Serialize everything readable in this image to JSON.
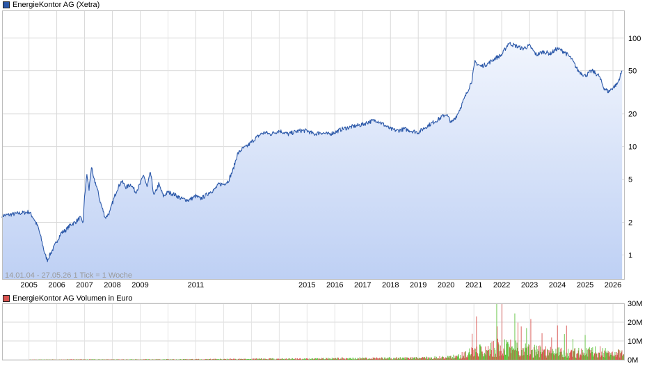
{
  "chart_data": [
    {
      "type": "line",
      "title": "EnergieKontor AG (Xetra)",
      "scale": "log",
      "ylim": [
        0.6,
        180
      ],
      "grid": true,
      "legend_position": "top-left",
      "y_ticks": [
        1,
        2,
        5,
        10,
        20,
        50,
        100
      ],
      "x_ticks": [
        "2005",
        "2006",
        "2007",
        "2008",
        "2009",
        "2011",
        "2015",
        "2016",
        "2017",
        "2018",
        "2019",
        "2020",
        "2021",
        "2022",
        "2023",
        "2024",
        "2025",
        "2026"
      ],
      "footer": "14.01.04 - 27.05.26    1 Tick = 1 Woche",
      "series": [
        {
          "name": "EnergieKontor AG (Xetra)",
          "color": "#2a57a8",
          "points": [
            [
              "2005-01-01",
              2.5
            ],
            [
              "2005-03-01",
              2.2
            ],
            [
              "2005-05-01",
              1.8
            ],
            [
              "2005-06-01",
              1.5
            ],
            [
              "2005-08-01",
              1.0
            ],
            [
              "2005-09-01",
              0.9
            ],
            [
              "2005-10-01",
              1.0
            ],
            [
              "2005-12-01",
              1.2
            ],
            [
              "2006-01-15",
              1.4
            ],
            [
              "2006-03-01",
              1.6
            ],
            [
              "2006-05-01",
              1.7
            ],
            [
              "2006-07-01",
              1.9
            ],
            [
              "2006-09-01",
              2.0
            ],
            [
              "2006-11-01",
              2.2
            ],
            [
              "2006-12-15",
              2.0
            ],
            [
              "2007-01-01",
              3.5
            ],
            [
              "2007-02-01",
              5.5
            ],
            [
              "2007-03-01",
              4.0
            ],
            [
              "2007-04-01",
              6.5
            ],
            [
              "2007-05-01",
              5.0
            ],
            [
              "2007-06-01",
              4.5
            ],
            [
              "2007-08-01",
              3.0
            ],
            [
              "2007-10-01",
              2.2
            ],
            [
              "2007-12-01",
              2.5
            ],
            [
              "2008-01-01",
              3.0
            ],
            [
              "2008-03-01",
              4.0
            ],
            [
              "2008-05-01",
              4.8
            ],
            [
              "2008-07-01",
              4.2
            ],
            [
              "2008-09-01",
              4.5
            ],
            [
              "2008-11-01",
              3.8
            ],
            [
              "2009-01-01",
              4.5
            ],
            [
              "2009-02-15",
              5.5
            ],
            [
              "2009-04-01",
              4.2
            ],
            [
              "2009-05-15",
              5.8
            ],
            [
              "2009-07-01",
              3.5
            ],
            [
              "2009-09-01",
              4.5
            ],
            [
              "2009-11-01",
              3.5
            ],
            [
              "2010-01-01",
              3.8
            ],
            [
              "2010-04-01",
              3.6
            ],
            [
              "2010-07-01",
              3.3
            ],
            [
              "2010-10-01",
              3.2
            ],
            [
              "2011-01-01",
              3.5
            ],
            [
              "2011-03-01",
              3.3
            ],
            [
              "2011-05-01",
              3.5
            ],
            [
              "2011-07-01",
              3.8
            ],
            [
              "2011-09-01",
              4.0
            ],
            [
              "2011-11-01",
              4.5
            ],
            [
              "2012-01-01",
              4.5
            ],
            [
              "2012-03-01",
              4.8
            ],
            [
              "2012-05-01",
              6.0
            ],
            [
              "2012-07-01",
              8.5
            ],
            [
              "2012-09-01",
              9.5
            ],
            [
              "2012-11-01",
              10.0
            ],
            [
              "2013-01-01",
              11.0
            ],
            [
              "2013-03-01",
              12.0
            ],
            [
              "2013-05-01",
              13.0
            ],
            [
              "2013-07-01",
              13.5
            ],
            [
              "2013-09-01",
              13.0
            ],
            [
              "2013-11-01",
              13.5
            ],
            [
              "2014-01-01",
              14.0
            ],
            [
              "2014-03-01",
              13.5
            ],
            [
              "2014-05-01",
              13.0
            ],
            [
              "2014-07-01",
              13.5
            ],
            [
              "2014-10-01",
              14.0
            ],
            [
              "2015-01-01",
              14.0
            ],
            [
              "2015-04-01",
              13.0
            ],
            [
              "2015-07-01",
              13.5
            ],
            [
              "2015-10-01",
              13.0
            ],
            [
              "2016-01-01",
              13.5
            ],
            [
              "2016-04-01",
              14.5
            ],
            [
              "2016-07-01",
              15.0
            ],
            [
              "2016-10-01",
              15.5
            ],
            [
              "2017-01-01",
              16.0
            ],
            [
              "2017-04-01",
              17.0
            ],
            [
              "2017-07-01",
              17.5
            ],
            [
              "2017-10-01",
              16.0
            ],
            [
              "2018-01-01",
              14.5
            ],
            [
              "2018-04-01",
              14.0
            ],
            [
              "2018-07-01",
              14.5
            ],
            [
              "2018-10-01",
              14.0
            ],
            [
              "2019-01-01",
              13.5
            ],
            [
              "2019-04-01",
              15.0
            ],
            [
              "2019-07-01",
              16.5
            ],
            [
              "2019-10-01",
              18.0
            ],
            [
              "2020-01-01",
              20.0
            ],
            [
              "2020-03-15",
              16.5
            ],
            [
              "2020-06-01",
              20.0
            ],
            [
              "2020-09-01",
              28.0
            ],
            [
              "2020-12-01",
              40.0
            ],
            [
              "2021-01-15",
              60.0
            ],
            [
              "2021-04-01",
              55.0
            ],
            [
              "2021-07-01",
              58.0
            ],
            [
              "2021-10-01",
              65.0
            ],
            [
              "2022-01-01",
              70.0
            ],
            [
              "2022-04-01",
              90.0
            ],
            [
              "2022-07-01",
              85.0
            ],
            [
              "2022-10-01",
              80.0
            ],
            [
              "2023-01-01",
              85.0
            ],
            [
              "2023-04-01",
              70.0
            ],
            [
              "2023-07-01",
              75.0
            ],
            [
              "2023-10-01",
              72.0
            ],
            [
              "2024-01-01",
              80.0
            ],
            [
              "2024-04-01",
              75.0
            ],
            [
              "2024-07-01",
              65.0
            ],
            [
              "2024-10-01",
              50.0
            ],
            [
              "2025-01-01",
              45.0
            ],
            [
              "2025-04-01",
              50.0
            ],
            [
              "2025-07-01",
              45.0
            ],
            [
              "2025-09-01",
              35.0
            ],
            [
              "2025-11-01",
              32.0
            ],
            [
              "2026-01-01",
              35.0
            ],
            [
              "2026-03-01",
              38.0
            ],
            [
              "2026-05-01",
              50.0
            ]
          ]
        }
      ]
    },
    {
      "type": "bar",
      "title": "EnergieKontor AG Volumen in Euro",
      "grid": true,
      "legend_position": "top-left",
      "y_ticks": [
        "0M",
        "10M",
        "20M",
        "30M"
      ],
      "ylim": [
        0,
        30
      ],
      "colors": {
        "up": "#5ec23b",
        "down": "#d9534f"
      },
      "series": [
        {
          "name": "EnergieKontor AG Volumen in Euro",
          "levels": [
            [
              "2005-01-01",
              0.1
            ],
            [
              "2007-01-01",
              0.2
            ],
            [
              "2009-01-01",
              0.2
            ],
            [
              "2011-01-01",
              0.3
            ],
            [
              "2013-01-01",
              0.5
            ],
            [
              "2015-01-01",
              0.6
            ],
            [
              "2016-01-01",
              0.8
            ],
            [
              "2017-01-01",
              0.9
            ],
            [
              "2018-01-01",
              1.0
            ],
            [
              "2019-01-01",
              1.0
            ],
            [
              "2020-01-01",
              1.5
            ],
            [
              "2020-06-01",
              2.0
            ],
            [
              "2020-12-01",
              5.0
            ],
            [
              "2021-06-01",
              6.0
            ],
            [
              "2022-01-01",
              8.0
            ],
            [
              "2022-06-01",
              7.0
            ],
            [
              "2023-01-01",
              6.0
            ],
            [
              "2023-06-01",
              5.0
            ],
            [
              "2024-01-01",
              4.5
            ],
            [
              "2024-06-01",
              4.0
            ],
            [
              "2025-01-01",
              4.5
            ],
            [
              "2025-06-01",
              5.0
            ],
            [
              "2026-01-01",
              4.0
            ],
            [
              "2026-05-01",
              4.0
            ]
          ]
        }
      ]
    }
  ]
}
